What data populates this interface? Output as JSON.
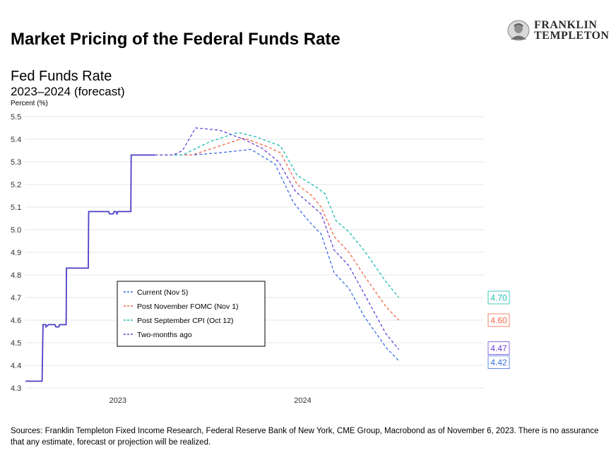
{
  "header": {
    "title": "Market Pricing of the Federal Funds Rate",
    "logo_line1": "FRANKLIN",
    "logo_line2": "TEMPLETON"
  },
  "subtitle": "Fed Funds Rate",
  "subtitle2": "2023–2024 (forecast)",
  "footer": "Sources: Franklin Templeton Fixed Income Research, Federal Reserve Bank of New York, CME Group, Macrobond as of November 6, 2023. There is no assurance that any estimate, forecast or projection will be realized.",
  "chart_data": {
    "type": "line",
    "ylabel": "Percent (%)",
    "ylim": [
      4.3,
      5.5
    ],
    "yticks": [
      "5.5",
      "5.4",
      "5.3",
      "5.2",
      "5.1",
      "5.0",
      "4.9",
      "4.8",
      "4.7",
      "4.6",
      "4.5",
      "4.4",
      "4.3"
    ],
    "xlim": [
      2022.5,
      2024.98
    ],
    "xticks": [
      {
        "label": "2023",
        "x": 2023.0
      },
      {
        "label": "2024",
        "x": 2024.0
      }
    ],
    "grid": true,
    "legend_position": "lower-left",
    "historical": {
      "color": "#4b3fc6",
      "points": [
        [
          2022.5,
          4.33
        ],
        [
          2022.59,
          4.33
        ],
        [
          2022.595,
          4.58
        ],
        [
          2022.61,
          4.58
        ],
        [
          2022.612,
          4.57
        ],
        [
          2022.625,
          4.58
        ],
        [
          2022.66,
          4.58
        ],
        [
          2022.665,
          4.57
        ],
        [
          2022.68,
          4.57
        ],
        [
          2022.685,
          4.58
        ],
        [
          2022.72,
          4.58
        ],
        [
          2022.722,
          4.83
        ],
        [
          2022.84,
          4.83
        ],
        [
          2022.842,
          5.08
        ],
        [
          2022.95,
          5.08
        ],
        [
          2022.955,
          5.07
        ],
        [
          2022.975,
          5.07
        ],
        [
          2022.98,
          5.08
        ],
        [
          2022.99,
          5.08
        ],
        [
          2022.995,
          5.07
        ],
        [
          2023.0,
          5.08
        ],
        [
          2023.07,
          5.08
        ],
        [
          2023.072,
          5.33
        ],
        [
          2023.2,
          5.33
        ]
      ]
    },
    "series": [
      {
        "name": "Current (Nov 5)",
        "color": "#3b6de0",
        "end_label": "4.42",
        "points": [
          [
            2023.2,
            5.33
          ],
          [
            2023.4,
            5.33
          ],
          [
            2023.55,
            5.34
          ],
          [
            2023.72,
            5.355
          ],
          [
            2023.85,
            5.29
          ],
          [
            2023.95,
            5.12
          ],
          [
            2024.03,
            5.04
          ],
          [
            2024.1,
            4.98
          ],
          [
            2024.17,
            4.81
          ],
          [
            2024.25,
            4.74
          ],
          [
            2024.33,
            4.62
          ],
          [
            2024.45,
            4.48
          ],
          [
            2024.52,
            4.42
          ]
        ]
      },
      {
        "name": "Post November FOMC (Nov 1)",
        "color": "#f0684a",
        "end_label": "4.60",
        "points": [
          [
            2023.2,
            5.33
          ],
          [
            2023.4,
            5.33
          ],
          [
            2023.55,
            5.37
          ],
          [
            2023.68,
            5.405
          ],
          [
            2023.8,
            5.37
          ],
          [
            2023.88,
            5.34
          ],
          [
            2023.97,
            5.2
          ],
          [
            2024.05,
            5.15
          ],
          [
            2024.1,
            5.1
          ],
          [
            2024.17,
            4.97
          ],
          [
            2024.25,
            4.9
          ],
          [
            2024.33,
            4.8
          ],
          [
            2024.45,
            4.66
          ],
          [
            2024.52,
            4.6
          ]
        ]
      },
      {
        "name": "Post September CPI (Oct 12)",
        "color": "#1bbcb0",
        "end_label": "4.70",
        "points": [
          [
            2023.2,
            5.33
          ],
          [
            2023.35,
            5.33
          ],
          [
            2023.5,
            5.39
          ],
          [
            2023.65,
            5.43
          ],
          [
            2023.75,
            5.41
          ],
          [
            2023.88,
            5.37
          ],
          [
            2023.97,
            5.24
          ],
          [
            2024.07,
            5.19
          ],
          [
            2024.12,
            5.16
          ],
          [
            2024.18,
            5.04
          ],
          [
            2024.25,
            4.99
          ],
          [
            2024.33,
            4.91
          ],
          [
            2024.45,
            4.77
          ],
          [
            2024.52,
            4.7
          ]
        ]
      },
      {
        "name": "Two-months ago",
        "color": "#6a42d8",
        "end_label": "4.47",
        "points": [
          [
            2023.2,
            5.33
          ],
          [
            2023.3,
            5.33
          ],
          [
            2023.35,
            5.35
          ],
          [
            2023.42,
            5.45
          ],
          [
            2023.55,
            5.44
          ],
          [
            2023.68,
            5.4
          ],
          [
            2023.78,
            5.36
          ],
          [
            2023.87,
            5.3
          ],
          [
            2023.96,
            5.17
          ],
          [
            2024.03,
            5.12
          ],
          [
            2024.1,
            5.07
          ],
          [
            2024.17,
            4.91
          ],
          [
            2024.25,
            4.84
          ],
          [
            2024.33,
            4.72
          ],
          [
            2024.45,
            4.54
          ],
          [
            2024.52,
            4.47
          ]
        ]
      }
    ]
  }
}
